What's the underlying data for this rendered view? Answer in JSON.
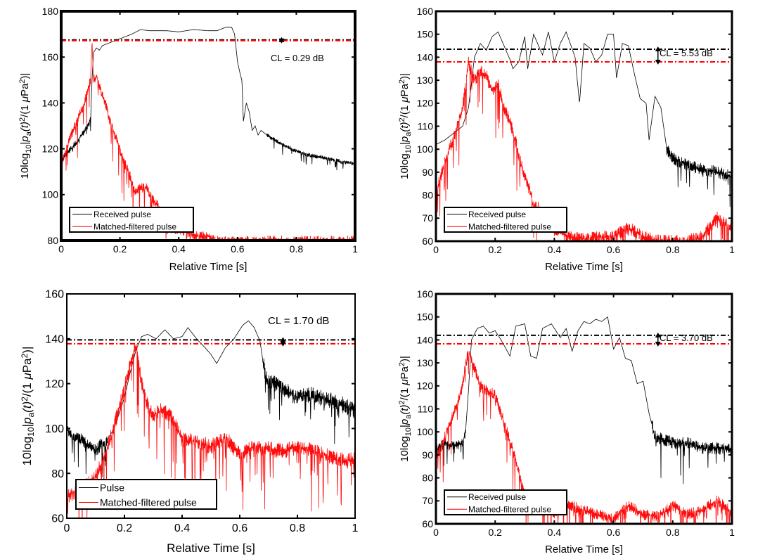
{
  "chart_data": [
    {
      "id": "top-left",
      "type": "line",
      "title": "",
      "xlabel": "Relative Time [s]",
      "ylabel_parts": {
        "prefix": "10log",
        "sub10": "10",
        "bar": "|",
        "p": "p",
        "sub_a": "a",
        "mid": "(t)",
        "sup2a": "2",
        "mid2": "/(1 ",
        "mu": "μ",
        "pa": "Pa",
        "sup2b": "2",
        "end": ")|"
      },
      "xlim": [
        0,
        1
      ],
      "ylim": [
        80,
        180
      ],
      "xticks": [
        0,
        0.2,
        0.4,
        0.6,
        0.8,
        1
      ],
      "xtick_labels": [
        "0",
        "0.2",
        "0.4",
        "0.6",
        "0.8",
        "1"
      ],
      "yticks": [
        80,
        100,
        120,
        140,
        160,
        180
      ],
      "ytick_labels": [
        "80",
        "100",
        "120",
        "140",
        "160",
        "180"
      ],
      "grid": false,
      "legend": {
        "placement": "bottom-left",
        "entries": [
          {
            "label": "Received pulse",
            "color": "#000000"
          },
          {
            "label": "Matched-filtered pulse",
            "color": "#ff0000"
          }
        ]
      },
      "reference_lines": [
        {
          "name": "received-level",
          "y": 167.5,
          "color": "#000000"
        },
        {
          "name": "matched-level",
          "y": 167.2,
          "color": "#ff0000"
        }
      ],
      "cl_annotation": {
        "text": "CL =  0.29 dB",
        "value_db": 0.29,
        "marker_x": 0.75
      },
      "series": [
        {
          "name": "Received pulse",
          "color": "#000000",
          "x": [
            0,
            0.02,
            0.04,
            0.06,
            0.08,
            0.095,
            0.1,
            0.105,
            0.11,
            0.12,
            0.13,
            0.14,
            0.16,
            0.18,
            0.2,
            0.24,
            0.27,
            0.3,
            0.33,
            0.36,
            0.4,
            0.45,
            0.5,
            0.53,
            0.56,
            0.58,
            0.59,
            0.6,
            0.61,
            0.615,
            0.62,
            0.63,
            0.64,
            0.65,
            0.66,
            0.67,
            0.68,
            0.7,
            0.75,
            0.8,
            0.85,
            0.9,
            0.95,
            1.0
          ],
          "y": [
            115,
            118,
            121,
            124,
            128,
            131,
            133,
            150,
            162,
            164,
            163,
            165,
            166,
            167,
            168,
            170,
            172,
            171.5,
            171.5,
            171.5,
            171,
            172,
            171.5,
            171.5,
            173,
            173,
            170,
            158,
            152,
            150,
            132,
            140,
            136,
            128,
            130,
            126,
            128,
            126,
            122,
            119,
            117,
            116,
            114.5,
            113.5
          ],
          "noise_band": [
            [
              0,
              0.1,
              3
            ],
            [
              0.7,
              1.0,
              2
            ]
          ]
        },
        {
          "name": "Matched-filtered pulse",
          "color": "#ff0000",
          "x": [
            0,
            0.02,
            0.04,
            0.06,
            0.08,
            0.09,
            0.1,
            0.105,
            0.11,
            0.12,
            0.13,
            0.15,
            0.17,
            0.19,
            0.21,
            0.23,
            0.25,
            0.27,
            0.29,
            0.31,
            0.33,
            0.35,
            0.38,
            0.42,
            0.46,
            0.5,
            0.52
          ],
          "y": [
            112,
            122,
            128,
            134,
            140,
            146,
            150,
            167,
            150,
            152,
            148,
            140,
            130,
            124,
            115,
            110,
            101,
            103,
            103,
            98,
            95,
            87,
            85,
            84,
            82,
            82,
            80
          ],
          "oscillation": 6
        }
      ]
    },
    {
      "id": "top-right",
      "type": "line",
      "title": "",
      "xlabel": "Relative Time [s]",
      "xlim": [
        0,
        1
      ],
      "ylim": [
        60,
        160
      ],
      "xticks": [
        0,
        0.2,
        0.4,
        0.6,
        0.8,
        1
      ],
      "xtick_labels": [
        "0",
        "0.2",
        "0.4",
        "0.6",
        "0.8",
        "1"
      ],
      "yticks": [
        60,
        70,
        80,
        90,
        100,
        110,
        120,
        130,
        140,
        150,
        160
      ],
      "ytick_labels": [
        "60",
        "70",
        "80",
        "90",
        "100",
        "110",
        "120",
        "130",
        "140",
        "150",
        "160"
      ],
      "grid": false,
      "legend": {
        "placement": "bottom-left",
        "entries": [
          {
            "label": "Received pulse",
            "color": "#000000"
          },
          {
            "label": "Matched-filtered pulse",
            "color": "#ff0000"
          }
        ]
      },
      "reference_lines": [
        {
          "name": "received-level",
          "y": 143.5,
          "color": "#000000"
        },
        {
          "name": "matched-level",
          "y": 138,
          "color": "#ff0000"
        }
      ],
      "cl_annotation": {
        "text": "CL =  5.53 dB",
        "value_db": 5.53,
        "marker_x": 0.75
      },
      "series": [
        {
          "name": "Received pulse",
          "color": "#000000",
          "x": [
            0,
            0.03,
            0.06,
            0.09,
            0.11,
            0.13,
            0.15,
            0.17,
            0.19,
            0.21,
            0.23,
            0.25,
            0.26,
            0.28,
            0.3,
            0.31,
            0.33,
            0.36,
            0.38,
            0.4,
            0.42,
            0.44,
            0.47,
            0.485,
            0.5,
            0.52,
            0.54,
            0.56,
            0.58,
            0.6,
            0.61,
            0.63,
            0.65,
            0.67,
            0.69,
            0.71,
            0.72,
            0.74,
            0.76,
            0.78,
            0.8,
            0.85,
            0.9,
            0.95,
            1.0
          ],
          "y": [
            102,
            104,
            107,
            110,
            118,
            140,
            146,
            143,
            149,
            151,
            145,
            139,
            135,
            138,
            149,
            135,
            150,
            141,
            151,
            138,
            146,
            151,
            140,
            120,
            146,
            144,
            138,
            141,
            150,
            150,
            131,
            146,
            145,
            133,
            122,
            120,
            104,
            123,
            118,
            100,
            96,
            93,
            91,
            90,
            88
          ],
          "noise_band": [
            [
              0.78,
              1.0,
              6
            ]
          ]
        },
        {
          "name": "Matched-filtered pulse",
          "color": "#ff0000",
          "x": [
            0,
            0.03,
            0.06,
            0.09,
            0.11,
            0.13,
            0.15,
            0.17,
            0.19,
            0.21,
            0.23,
            0.25,
            0.27,
            0.29,
            0.31,
            0.33,
            0.35,
            0.37,
            0.4,
            0.45,
            0.5,
            0.55,
            0.6,
            0.65,
            0.7,
            0.75,
            0.8,
            0.85,
            0.9,
            0.95,
            1.0
          ],
          "y": [
            80,
            95,
            105,
            118,
            138,
            130,
            134,
            132,
            125,
            128,
            118,
            112,
            103,
            92,
            85,
            76,
            74,
            68,
            65,
            62,
            61,
            62,
            62,
            66,
            62,
            60,
            60,
            60,
            62,
            70,
            66
          ],
          "oscillation": 8
        }
      ]
    },
    {
      "id": "bottom-left",
      "type": "line",
      "title": "",
      "xlabel": "Relative Time [s]",
      "xlim": [
        0,
        1
      ],
      "ylim": [
        60,
        160
      ],
      "xticks": [
        0,
        0.2,
        0.4,
        0.6,
        0.8,
        1
      ],
      "xtick_labels": [
        "0",
        "0.2",
        "0.4",
        "0.6",
        "0.8",
        "1"
      ],
      "yticks": [
        60,
        80,
        100,
        120,
        140,
        160
      ],
      "ytick_labels": [
        "60",
        "80",
        "100",
        "120",
        "140",
        "160"
      ],
      "grid": false,
      "legend": {
        "placement": "bottom-left",
        "entries": [
          {
            "label": "Pulse",
            "color": "#000000"
          },
          {
            "label": "Matched-filtered pulse",
            "color": "#ff0000"
          }
        ]
      },
      "reference_lines": [
        {
          "name": "received-level",
          "y": 139.5,
          "color": "#000000"
        },
        {
          "name": "matched-level",
          "y": 137.8,
          "color": "#ff0000"
        }
      ],
      "cl_annotation": {
        "text": "CL =  1.70 dB",
        "value_db": 1.7,
        "marker_x": 0.75
      },
      "series": [
        {
          "name": "Pulse",
          "color": "#000000",
          "x": [
            0,
            0.02,
            0.05,
            0.08,
            0.1,
            0.12,
            0.14,
            0.16,
            0.18,
            0.2,
            0.22,
            0.24,
            0.26,
            0.28,
            0.31,
            0.34,
            0.37,
            0.4,
            0.42,
            0.45,
            0.48,
            0.5,
            0.52,
            0.55,
            0.58,
            0.61,
            0.63,
            0.65,
            0.67,
            0.69,
            0.72,
            0.75,
            0.8,
            0.85,
            0.9,
            0.95,
            1.0
          ],
          "y": [
            100,
            96,
            95,
            92,
            90,
            93,
            95,
            99,
            106,
            114,
            125,
            135,
            141,
            142,
            140,
            144,
            140,
            141,
            145,
            140,
            136,
            133,
            129,
            136,
            140,
            146,
            148,
            145,
            139,
            122,
            120,
            118,
            114,
            115,
            113,
            111,
            108
          ],
          "noise_band": [
            [
              0,
              0.14,
              6
            ],
            [
              0.68,
              1.0,
              8
            ]
          ]
        },
        {
          "name": "Matched-filtered pulse",
          "color": "#ff0000",
          "x": [
            0,
            0.03,
            0.06,
            0.09,
            0.12,
            0.15,
            0.18,
            0.2,
            0.22,
            0.24,
            0.26,
            0.28,
            0.3,
            0.33,
            0.36,
            0.4,
            0.45,
            0.5,
            0.55,
            0.6,
            0.65,
            0.7,
            0.75,
            0.8,
            0.85,
            0.9,
            0.95,
            1.0
          ],
          "y": [
            70,
            72,
            74,
            76,
            84,
            95,
            108,
            118,
            128,
            137,
            120,
            110,
            106,
            108,
            106,
            95,
            94,
            92,
            96,
            88,
            92,
            91,
            90,
            92,
            90,
            88,
            86,
            86
          ],
          "oscillation": 10
        }
      ]
    },
    {
      "id": "bottom-right",
      "type": "line",
      "title": "",
      "xlabel": "Relative Time [s]",
      "xlim": [
        0,
        1
      ],
      "ylim": [
        60,
        160
      ],
      "xticks": [
        0,
        0.2,
        0.4,
        0.6,
        0.8,
        1
      ],
      "xtick_labels": [
        "0",
        "0.2",
        "0.4",
        "0.6",
        "0.8",
        "1"
      ],
      "yticks": [
        60,
        70,
        80,
        90,
        100,
        110,
        120,
        130,
        140,
        150,
        160
      ],
      "ytick_labels": [
        "60",
        "70",
        "80",
        "90",
        "100",
        "110",
        "120",
        "130",
        "140",
        "150",
        "160"
      ],
      "grid": false,
      "legend": {
        "placement": "bottom-left",
        "entries": [
          {
            "label": "Received pulse",
            "color": "#000000"
          },
          {
            "label": "Matched-filtered pulse",
            "color": "#ff0000"
          }
        ]
      },
      "reference_lines": [
        {
          "name": "received-level",
          "y": 142,
          "color": "#000000"
        },
        {
          "name": "matched-level",
          "y": 138.3,
          "color": "#ff0000"
        }
      ],
      "cl_annotation": {
        "text": "CL =  3.70 dB",
        "value_db": 3.7,
        "marker_x": 0.75
      },
      "series": [
        {
          "name": "Received pulse",
          "color": "#000000",
          "x": [
            0,
            0.03,
            0.06,
            0.09,
            0.1,
            0.11,
            0.12,
            0.14,
            0.16,
            0.18,
            0.2,
            0.22,
            0.25,
            0.27,
            0.3,
            0.32,
            0.34,
            0.36,
            0.39,
            0.42,
            0.44,
            0.46,
            0.48,
            0.5,
            0.52,
            0.54,
            0.56,
            0.58,
            0.6,
            0.62,
            0.64,
            0.66,
            0.68,
            0.7,
            0.72,
            0.74,
            0.78,
            0.82,
            0.86,
            0.9,
            0.95,
            1.0
          ],
          "y": [
            92,
            95,
            94,
            95,
            100,
            118,
            140,
            145,
            146,
            143,
            144,
            140,
            133,
            146,
            147,
            133,
            132,
            145,
            147,
            141,
            145,
            135,
            144,
            148,
            147,
            149,
            148,
            150,
            136,
            141,
            132,
            131,
            121,
            122,
            108,
            98,
            96,
            95,
            95,
            93,
            93,
            92
          ],
          "noise_band": [
            [
              0,
              0.1,
              5
            ],
            [
              0.73,
              1.0,
              6
            ]
          ]
        },
        {
          "name": "Matched-filtered pulse",
          "color": "#ff0000",
          "x": [
            0,
            0.03,
            0.06,
            0.09,
            0.1,
            0.11,
            0.13,
            0.15,
            0.17,
            0.2,
            0.22,
            0.24,
            0.26,
            0.28,
            0.3,
            0.33,
            0.36,
            0.4,
            0.45,
            0.5,
            0.55,
            0.6,
            0.65,
            0.7,
            0.75,
            0.8,
            0.85,
            0.9,
            0.95,
            1.0
          ],
          "y": [
            88,
            98,
            108,
            120,
            130,
            135,
            128,
            120,
            118,
            116,
            108,
            100,
            92,
            82,
            72,
            70,
            68,
            64,
            68,
            66,
            64,
            62,
            68,
            64,
            63,
            68,
            64,
            66,
            70,
            65
          ],
          "oscillation": 7
        }
      ]
    }
  ]
}
